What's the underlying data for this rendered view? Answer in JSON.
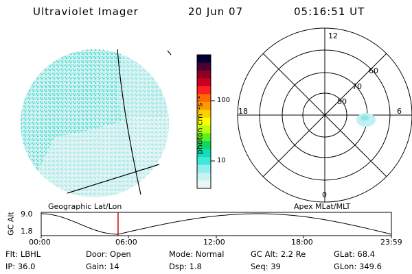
{
  "header": {
    "title": "Ultraviolet Imager",
    "date": "20 Jun 07",
    "time": "05:16:51 UT"
  },
  "colorbar": {
    "unit_label": "photon cm⁻²s⁻¹",
    "ticks": [
      "100",
      "10"
    ],
    "colors": [
      "#000033",
      "#4b0030",
      "#8e0022",
      "#c8001e",
      "#ff2020",
      "#ff6a00",
      "#ff9a00",
      "#ffd000",
      "#ffff00",
      "#b8ff10",
      "#5cf020",
      "#10d860",
      "#10e0b8",
      "#40e8d8",
      "#90eeee",
      "#c8f2f2",
      "#eaf6f6"
    ]
  },
  "panels": {
    "left_label": "Geographic Lat/Lon",
    "right_label": "Apex  MLat/MLT"
  },
  "polar": {
    "hour_labels": {
      "top": "12",
      "left": "18",
      "right": "6",
      "bottom": "0"
    },
    "lat_labels": [
      "60",
      "70",
      "80"
    ]
  },
  "altitude_plot": {
    "ylabel": "GC Alt",
    "yticks": [
      "9.0",
      "1.8"
    ],
    "xticks": [
      "00:00",
      "06:00",
      "12:00",
      "18:00",
      "23:59"
    ],
    "current_time_fraction": 0.2195,
    "marker_color": "#cc0000"
  },
  "status": {
    "row1": {
      "flt": "Flt: LBHL",
      "door": "Door: Open",
      "mode": "Mode: Normal",
      "gcalt": "GC Alt: 2.2 Re",
      "glat": "GLat:  68.4"
    },
    "row2": {
      "ip": "IP: 36.0",
      "gain": "Gain: 14",
      "dsp": "Dsp:    1.8",
      "seq": "Seq: 39",
      "glon": "GLon: 349.6"
    }
  }
}
